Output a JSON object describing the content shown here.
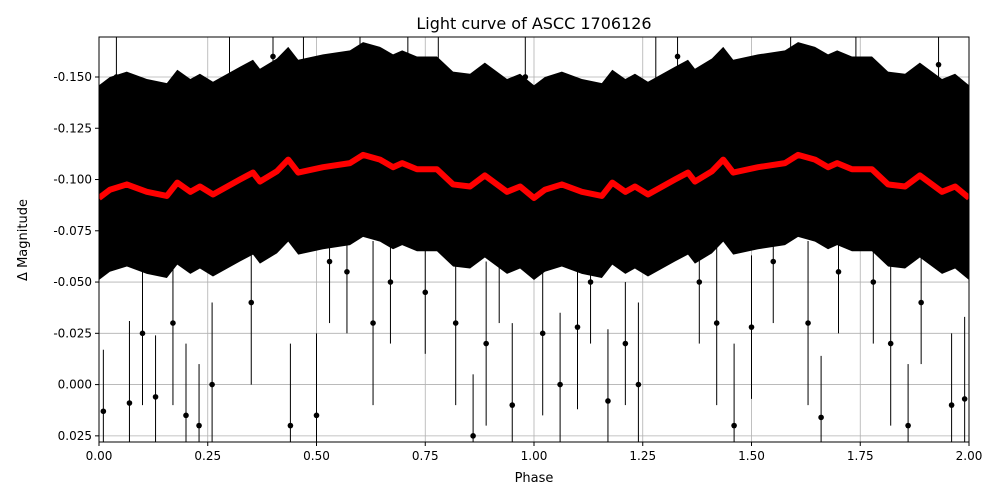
{
  "chart_data": {
    "type": "scatter",
    "title": "Light curve of ASCC 1706126",
    "xlabel": "Phase",
    "ylabel": "Δ Magnitude",
    "xlim": [
      0,
      2
    ],
    "ylim": [
      0.028,
      -0.1695
    ],
    "y_inverted": true,
    "grid": true,
    "x_ticks": [
      "0.00",
      "0.25",
      "0.50",
      "0.75",
      "1.00",
      "1.25",
      "1.50",
      "1.75",
      "2.00"
    ],
    "y_ticks": [
      "-0.150",
      "-0.125",
      "-0.100",
      "-0.075",
      "-0.050",
      "-0.025",
      "0.000",
      "0.025"
    ],
    "colors": {
      "observations": "#000000",
      "binned_mean": "#ff0000"
    },
    "binned_mean": {
      "phase": [
        0.0,
        0.025,
        0.064,
        0.11,
        0.156,
        0.18,
        0.21,
        0.232,
        0.262,
        0.324,
        0.354,
        0.37,
        0.409,
        0.435,
        0.458,
        0.515,
        0.577,
        0.607,
        0.646,
        0.676,
        0.697,
        0.731,
        0.777,
        0.814,
        0.853,
        0.887,
        0.938,
        0.968,
        1.0
      ],
      "magnitude": [
        -0.091,
        -0.095,
        -0.0976,
        -0.094,
        -0.092,
        -0.0985,
        -0.094,
        -0.0966,
        -0.0927,
        -0.1,
        -0.1034,
        -0.099,
        -0.104,
        -0.1097,
        -0.1034,
        -0.106,
        -0.108,
        -0.112,
        -0.1097,
        -0.106,
        -0.108,
        -0.105,
        -0.105,
        -0.0976,
        -0.0966,
        -0.102,
        -0.094,
        -0.0966,
        -0.091
      ],
      "repeats_every_phase": 1
    },
    "observations": {
      "phase": [
        0.01,
        0.04,
        0.07,
        0.1,
        0.13,
        0.17,
        0.2,
        0.23,
        0.26,
        0.3,
        0.35,
        0.4,
        0.44,
        0.47,
        0.5,
        0.53,
        0.57,
        0.6,
        0.63,
        0.67,
        0.71,
        0.75,
        0.78,
        0.82,
        0.86,
        0.89,
        0.92,
        0.95,
        0.98,
        1.02,
        1.06,
        1.1,
        1.13,
        1.17,
        1.21,
        1.24,
        1.28,
        1.33,
        1.38,
        1.42,
        1.46,
        1.5,
        1.55,
        1.59,
        1.63,
        1.66,
        1.7,
        1.74,
        1.78,
        1.82,
        1.86,
        1.89,
        1.93,
        1.96,
        1.99
      ],
      "magnitude": [
        0.013,
        -0.15,
        0.009,
        -0.025,
        0.006,
        -0.03,
        0.015,
        0.02,
        -0.0,
        -0.15,
        -0.04,
        -0.16,
        0.02,
        -0.14,
        0.015,
        -0.06,
        -0.055,
        -0.15,
        -0.03,
        -0.05,
        -0.158,
        -0.045,
        -0.14,
        -0.03,
        0.025,
        -0.02,
        -0.06,
        0.01,
        -0.15,
        -0.025,
        0.0,
        -0.028,
        -0.05,
        0.008,
        -0.02,
        0.0,
        -0.14,
        -0.16,
        -0.05,
        -0.03,
        0.02,
        -0.028,
        -0.06,
        -0.16,
        -0.03,
        0.016,
        -0.055,
        -0.15,
        -0.05,
        -0.02,
        0.02,
        -0.04,
        -0.156,
        0.01,
        0.007
      ],
      "errors": [
        0.03,
        0.02,
        0.04,
        0.035,
        0.03,
        0.04,
        0.035,
        0.03,
        0.04,
        0.02,
        0.04,
        0.03,
        0.04,
        0.03,
        0.04,
        0.03,
        0.03,
        0.025,
        0.04,
        0.03,
        0.02,
        0.03,
        0.03,
        0.04,
        0.03,
        0.04,
        0.03,
        0.04,
        0.02,
        0.04,
        0.035,
        0.04,
        0.03,
        0.035,
        0.03,
        0.04,
        0.03,
        0.02,
        0.03,
        0.04,
        0.04,
        0.035,
        0.03,
        0.02,
        0.04,
        0.03,
        0.03,
        0.025,
        0.03,
        0.04,
        0.03,
        0.03,
        0.02,
        0.035,
        0.04
      ]
    }
  }
}
